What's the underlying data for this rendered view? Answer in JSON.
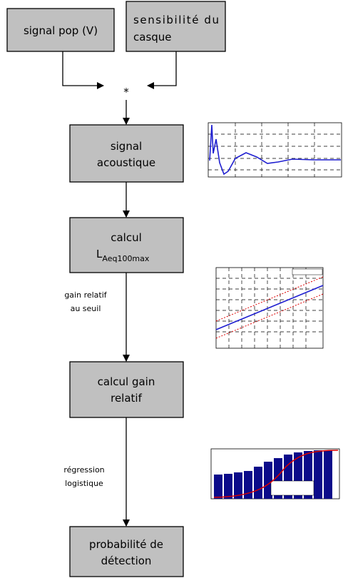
{
  "nodes": [
    {
      "lines": [
        "signal pop (V)"
      ]
    },
    {
      "lines": [
        "sensibilité du",
        "casque"
      ]
    },
    {
      "lines": [
        "signal",
        "acoustique"
      ]
    },
    {
      "lines": [
        "calcul"
      ],
      "symbol": "L",
      "subscript": "Aeq100max"
    },
    {
      "lines": [
        "calcul gain",
        "relatif"
      ]
    },
    {
      "lines": [
        "probabilité de",
        "détection"
      ]
    }
  ],
  "operator": "*",
  "edges": [
    {
      "label": [
        "gain relatif",
        "au seuil"
      ]
    },
    {
      "label": [
        "régression",
        "logistique"
      ]
    }
  ]
}
